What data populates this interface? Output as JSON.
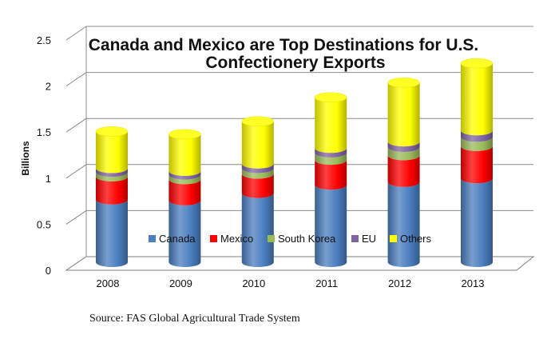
{
  "chart_data": {
    "type": "bar",
    "stacked": true,
    "style": "3d-cylinder",
    "title": "Canada and Mexico are Top Destinations for U.S. Confectionery Exports",
    "title_lines": [
      "Canada and Mexico are Top Destinations for U.S.",
      "Confectionery Exports"
    ],
    "ylabel": "Billions",
    "xlabel": "",
    "ylim": [
      0,
      2.5
    ],
    "yticks": [
      "0",
      "0.5",
      "1",
      "1.5",
      "2",
      "2.5"
    ],
    "ytick_values": [
      0,
      0.5,
      1,
      1.5,
      2,
      2.5
    ],
    "grid": true,
    "legend_position": "bottom-inside",
    "categories": [
      "2008",
      "2009",
      "2010",
      "2011",
      "2012",
      "2013"
    ],
    "series": [
      {
        "name": "Canada",
        "color": "#4a7ebf",
        "values": [
          0.68,
          0.67,
          0.75,
          0.84,
          0.87,
          0.91
        ]
      },
      {
        "name": "Mexico",
        "color": "#ff0000",
        "values": [
          0.25,
          0.23,
          0.21,
          0.27,
          0.29,
          0.35
        ]
      },
      {
        "name": "South Korea",
        "color": "#9bbb59",
        "values": [
          0.05,
          0.05,
          0.06,
          0.08,
          0.09,
          0.1
        ]
      },
      {
        "name": "EU",
        "color": "#8064a2",
        "values": [
          0.04,
          0.04,
          0.05,
          0.05,
          0.06,
          0.07
        ]
      },
      {
        "name": "Others",
        "color": "#ffff00",
        "values": [
          0.4,
          0.4,
          0.46,
          0.55,
          0.64,
          0.73
        ]
      }
    ]
  },
  "source": "Source: FAS Global Agricultural Trade System"
}
